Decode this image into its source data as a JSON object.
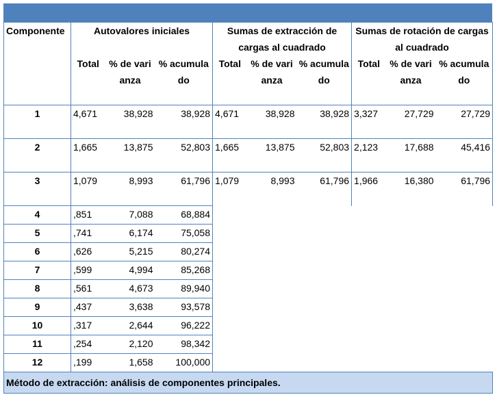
{
  "header": {
    "component_label": "Componente",
    "group1": "Autovalores iniciales",
    "group2": "Sumas de extracción de cargas al cuadrado",
    "group3": "Sumas de rotación de cargas al cuadrado",
    "sub_total": "Total",
    "sub_variance": "% de varianza",
    "sub_cumulative": "% acumulado"
  },
  "rows": [
    {
      "c": "1",
      "v": [
        "4,671",
        "38,928",
        "38,928",
        "4,671",
        "38,928",
        "38,928",
        "3,327",
        "27,729",
        "27,729"
      ]
    },
    {
      "c": "2",
      "v": [
        "1,665",
        "13,875",
        "52,803",
        "1,665",
        "13,875",
        "52,803",
        "2,123",
        "17,688",
        "45,416"
      ]
    },
    {
      "c": "3",
      "v": [
        "1,079",
        "8,993",
        "61,796",
        "1,079",
        "8,993",
        "61,796",
        "1,966",
        "16,380",
        "61,796"
      ]
    },
    {
      "c": "4",
      "v": [
        ",851",
        "7,088",
        "68,884"
      ]
    },
    {
      "c": "5",
      "v": [
        ",741",
        "6,174",
        "75,058"
      ]
    },
    {
      "c": "6",
      "v": [
        ",626",
        "5,215",
        "80,274"
      ]
    },
    {
      "c": "7",
      "v": [
        ",599",
        "4,994",
        "85,268"
      ]
    },
    {
      "c": "8",
      "v": [
        ",561",
        "4,673",
        "89,940"
      ]
    },
    {
      "c": "9",
      "v": [
        ",437",
        "3,638",
        "93,578"
      ]
    },
    {
      "c": "10",
      "v": [
        ",317",
        "2,644",
        "96,222"
      ]
    },
    {
      "c": "11",
      "v": [
        ",254",
        "2,120",
        "98,342"
      ]
    },
    {
      "c": "12",
      "v": [
        ",199",
        "1,658",
        "100,000"
      ]
    }
  ],
  "footer": "Método de extracción: análisis de componentes principales."
}
